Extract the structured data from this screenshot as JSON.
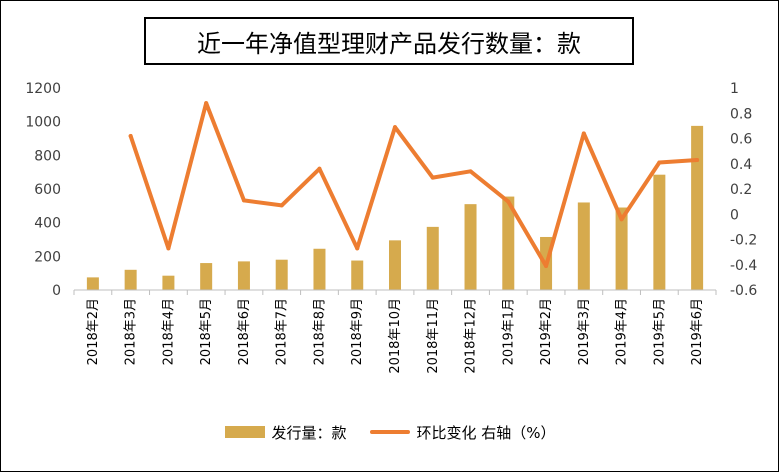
{
  "title": "近一年净值型理财产品发行数量：款",
  "colors": {
    "bar": "#d6aa4d",
    "line": "#ed7d31"
  },
  "chart_data": {
    "type": "bar",
    "title": "近一年净值型理财产品发行数量：款",
    "categories": [
      "2018年2月",
      "2018年3月",
      "2018年4月",
      "2018年5月",
      "2018年6月",
      "2018年7月",
      "2018年8月",
      "2018年9月",
      "2018年10月",
      "2018年11月",
      "2018年12月",
      "2019年1月",
      "2019年2月",
      "2019年3月",
      "2019年4月",
      "2019年5月",
      "2019年6月"
    ],
    "series": [
      {
        "name": "发行量：款",
        "type": "bar",
        "axis": "left",
        "values": [
          75,
          120,
          85,
          160,
          170,
          180,
          245,
          175,
          295,
          375,
          510,
          555,
          315,
          520,
          490,
          685,
          975
        ]
      },
      {
        "name": "环比变化 右轴（%）",
        "type": "line",
        "axis": "right",
        "values": [
          null,
          0.62,
          -0.27,
          0.88,
          0.11,
          0.07,
          0.36,
          -0.27,
          0.69,
          0.29,
          0.34,
          0.1,
          -0.41,
          0.64,
          -0.04,
          0.41,
          0.43
        ]
      }
    ],
    "y_left": {
      "ylim": [
        0,
        1200
      ],
      "ticks": [
        "0",
        "200",
        "400",
        "600",
        "800",
        "1000",
        "1200"
      ]
    },
    "y_right": {
      "ylim": [
        -0.6,
        1
      ],
      "ticks": [
        "-0.6",
        "-0.4",
        "-0.2",
        "0",
        "0.2",
        "0.4",
        "0.6",
        "0.8",
        "1"
      ]
    },
    "grid": false,
    "legend_position": "bottom"
  },
  "legend": {
    "bar_label": "发行量：款",
    "line_label": "环比变化 右轴（%）"
  }
}
